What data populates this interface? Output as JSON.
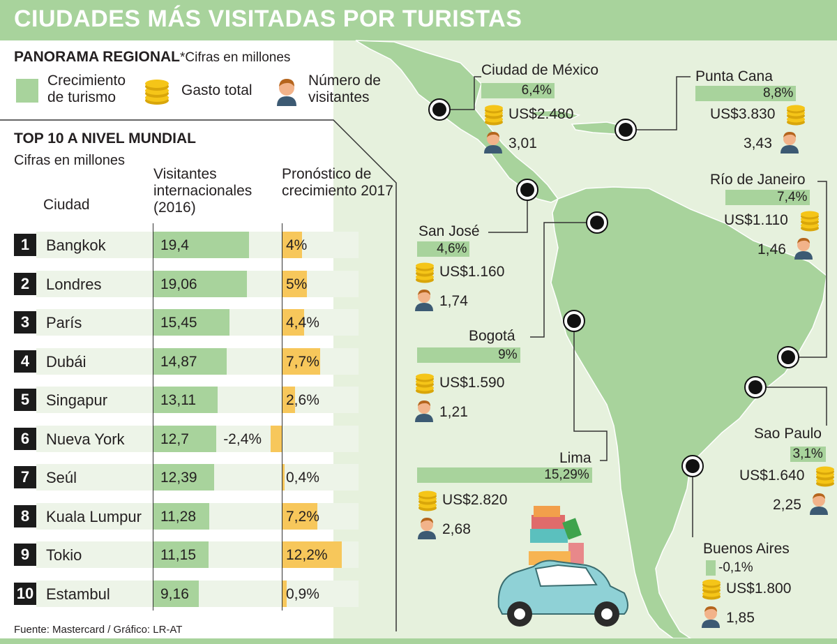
{
  "title": "CIUDADES MÁS VISITADAS POR TURISTAS",
  "regional": {
    "heading": "PANORAMA REGIONAL",
    "note": "*Cifras en millones",
    "legend_growth": "Crecimiento de turismo",
    "legend_spend": "Gasto total",
    "legend_visitors": "Número de visitantes"
  },
  "world": {
    "heading": "TOP 10 A NIVEL MUNDIAL",
    "note": "Cifras en millones",
    "col_city": "Ciudad",
    "col_visitors": "Visitantes internacionales (2016)",
    "col_forecast": "Pronóstico de crecimiento 2017"
  },
  "chart_data": [
    {
      "type": "bar",
      "title": "TOP 10 A NIVEL MUNDIAL",
      "categories": [
        "Bangkok",
        "Londres",
        "París",
        "Dubái",
        "Singapur",
        "Nueva York",
        "Seúl",
        "Kuala Lumpur",
        "Tokio",
        "Estambul"
      ],
      "ranks": [
        "1",
        "2",
        "3",
        "4",
        "5",
        "6",
        "7",
        "8",
        "9",
        "10"
      ],
      "series": [
        {
          "name": "Visitantes internacionales (2016)",
          "values": [
            19.4,
            19.06,
            15.45,
            14.87,
            13.11,
            12.7,
            12.39,
            11.28,
            11.15,
            9.16
          ],
          "labels": [
            "19,4",
            "19,06",
            "15,45",
            "14,87",
            "13,11",
            "12,7",
            "12,39",
            "11,28",
            "11,15",
            "9,16"
          ],
          "color": "#a8d39c"
        },
        {
          "name": "Pronóstico de crecimiento 2017",
          "values": [
            4,
            5,
            4.4,
            7.7,
            2.6,
            -2.4,
            0.4,
            7.2,
            12.2,
            0.9
          ],
          "labels": [
            "4%",
            "5%",
            "4,4%",
            "7,7%",
            "2,6%",
            "-2,4%",
            "0,4%",
            "7,2%",
            "12,2%",
            "0,9%"
          ],
          "color": "#f7c75b"
        }
      ]
    },
    {
      "type": "bar",
      "title": "PANORAMA REGIONAL",
      "categories": [
        "Ciudad de México",
        "Punta Cana",
        "Río de Janeiro",
        "San José",
        "Bogotá",
        "Lima",
        "Sao Paulo",
        "Buenos Aires"
      ],
      "series": [
        {
          "name": "Crecimiento de turismo",
          "values": [
            6.4,
            8.8,
            7.4,
            4.6,
            9,
            15.29,
            3.1,
            -0.1
          ],
          "labels": [
            "6,4%",
            "8,8%",
            "7,4%",
            "4,6%",
            "9%",
            "15,29%",
            "3,1%",
            "-0,1%"
          ],
          "color": "#a8d39c"
        },
        {
          "name": "Gasto total",
          "values": [
            2480,
            3830,
            1110,
            1160,
            1590,
            2820,
            1640,
            1800
          ],
          "labels": [
            "US$2.480",
            "US$3.830",
            "US$1.110",
            "US$1.160",
            "US$1.590",
            "US$2.820",
            "US$1.640",
            "US$1.800"
          ]
        },
        {
          "name": "Número de visitantes",
          "values": [
            3.01,
            3.43,
            1.46,
            1.74,
            1.21,
            2.68,
            2.25,
            1.85
          ],
          "labels": [
            "3,01",
            "3,43",
            "1,46",
            "1,74",
            "1,21",
            "2,68",
            "2,25",
            "1,85"
          ]
        }
      ]
    }
  ],
  "footer": "Fuente: Mastercard / Gráfico: LR-AT",
  "colors": {
    "header": "#a8d39c",
    "growth": "#a8d39c",
    "forecast": "#f7c75b",
    "map_land": "#a8d39c",
    "map_water": "#e6f1dd"
  },
  "icons": {
    "spend": "coin-stack-icon",
    "visitors": "person-icon",
    "city": "location-marker-icon"
  }
}
